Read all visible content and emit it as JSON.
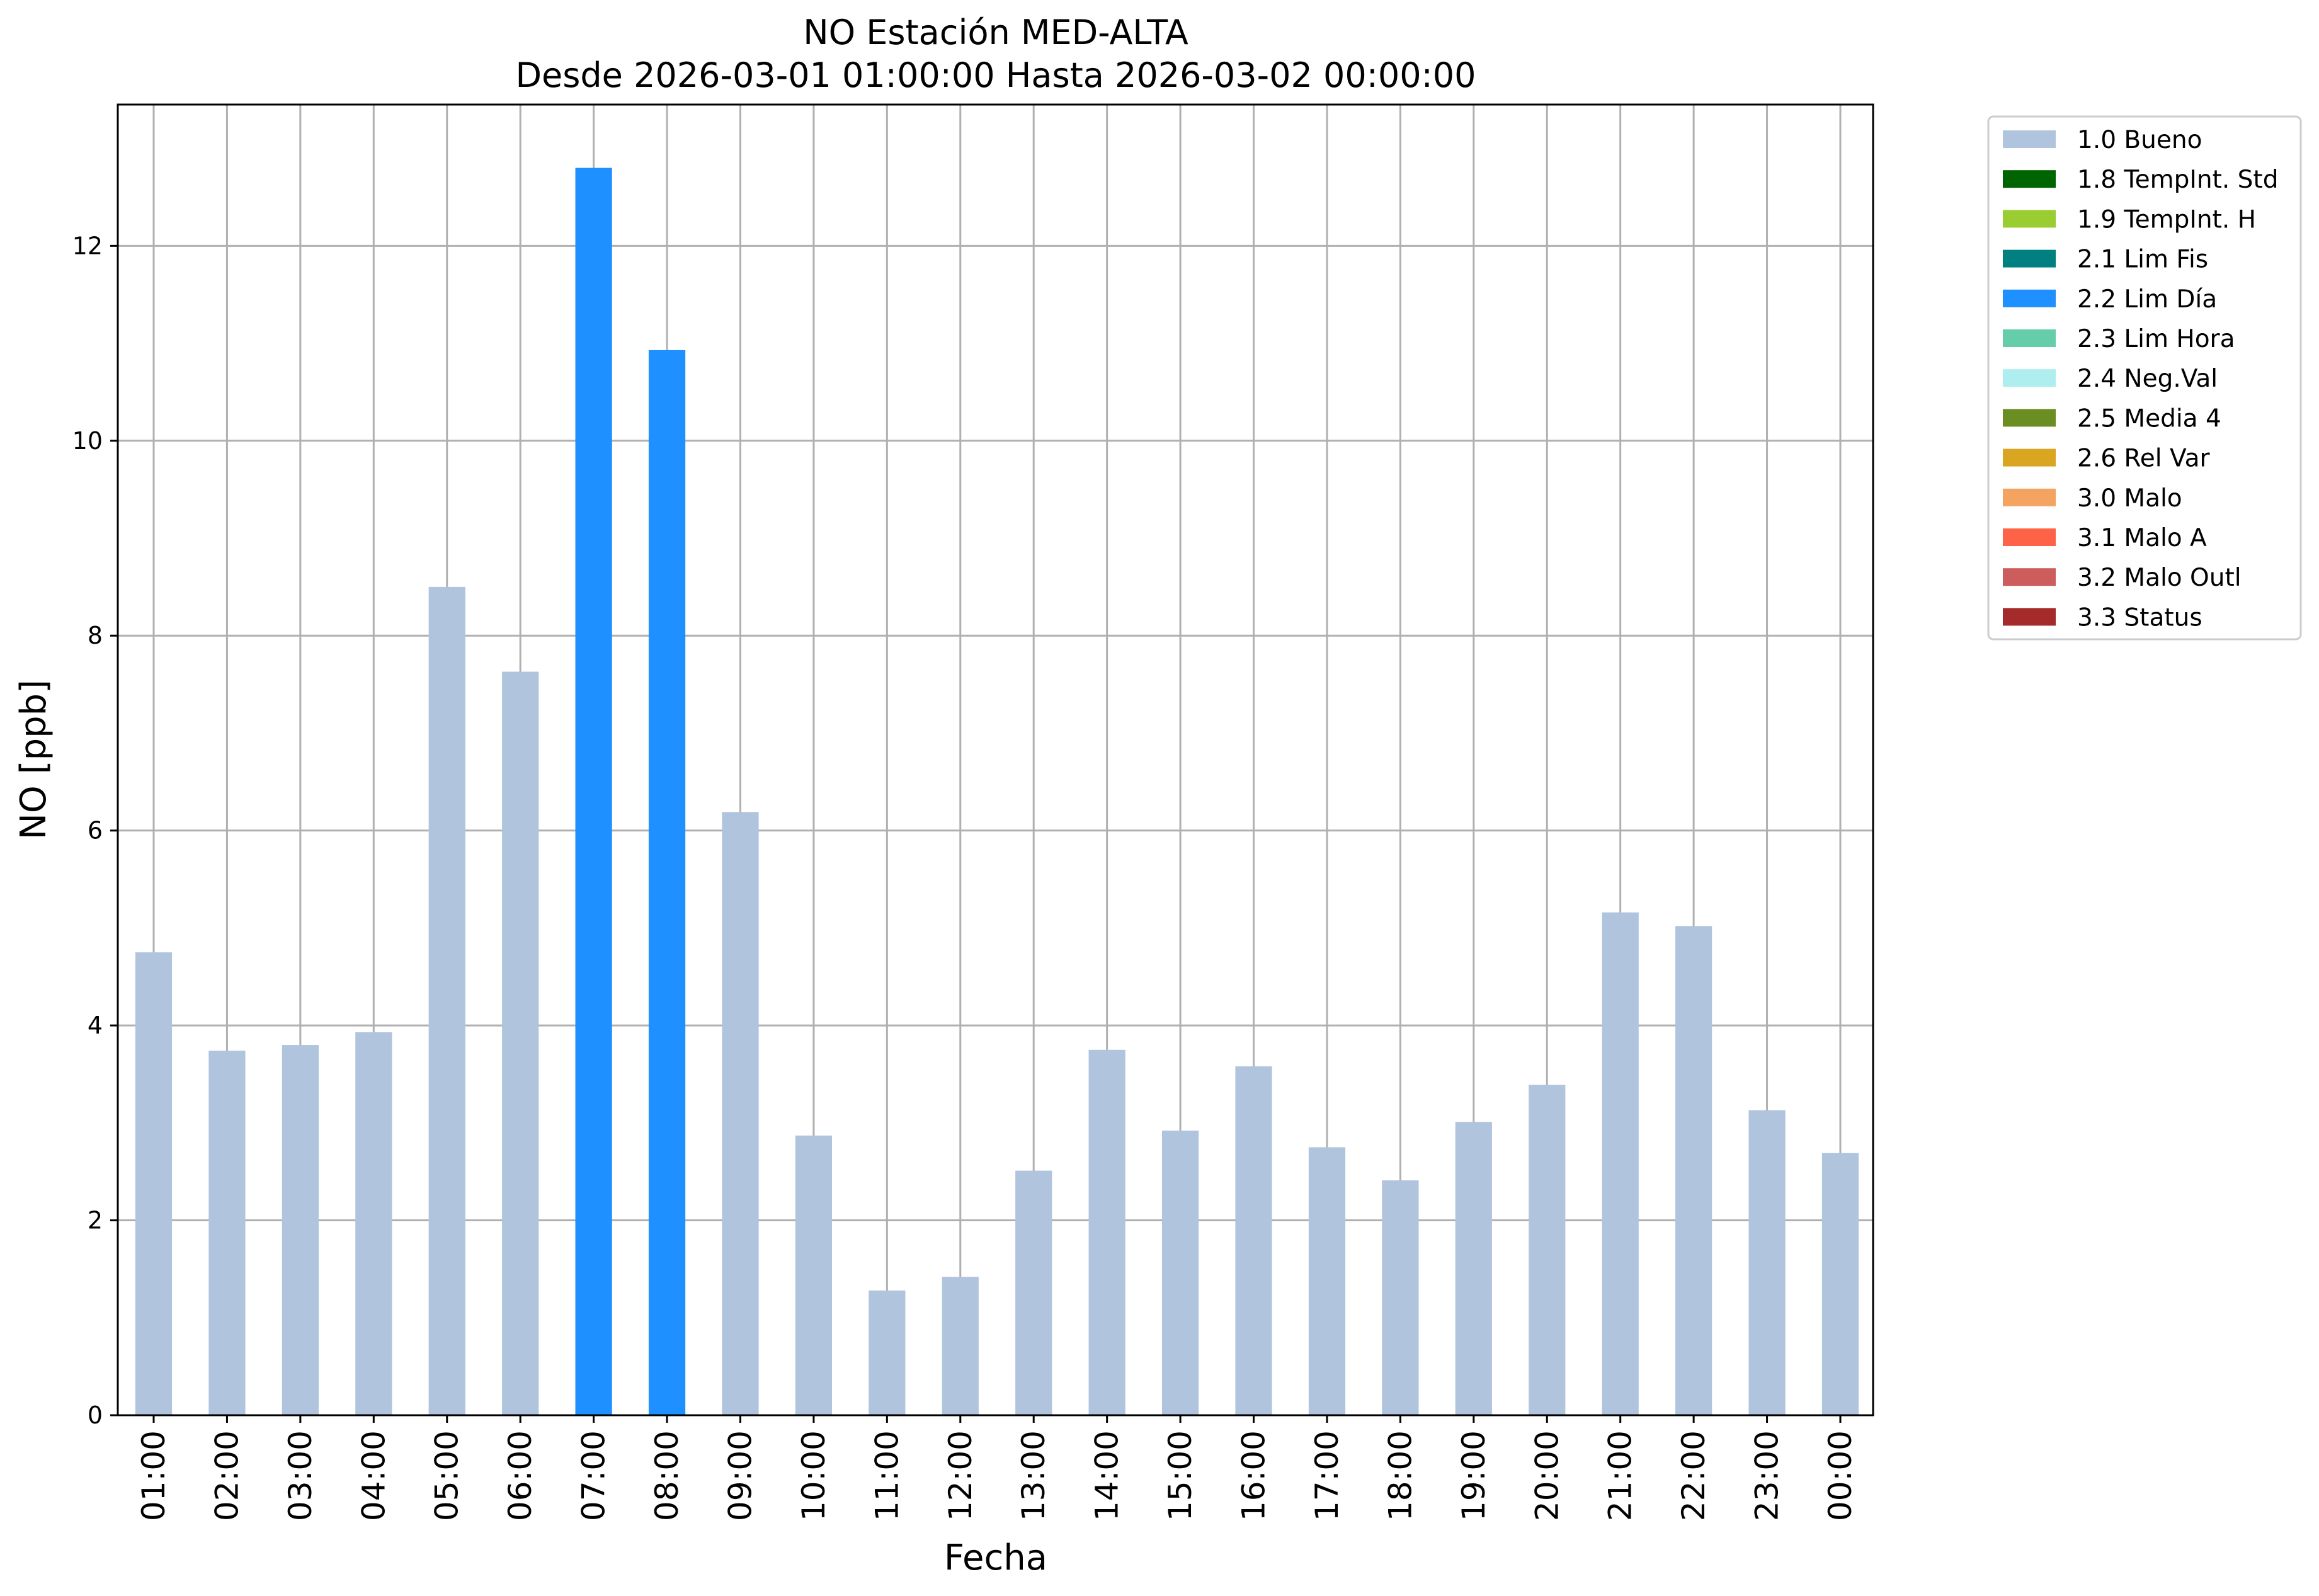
{
  "chart_data": {
    "type": "bar",
    "title": "NO Estación MED-ALTA",
    "subtitle": "Desde 2026-03-01 01:00:00 Hasta 2026-03-02 00:00:00",
    "xlabel": "Fecha",
    "ylabel": "NO [ppb]",
    "ylim": [
      0,
      13.45
    ],
    "yticks": [
      0,
      2,
      4,
      6,
      8,
      10,
      12
    ],
    "grid": true,
    "legend_position": "outside-top-right",
    "categories": [
      "01:00",
      "02:00",
      "03:00",
      "04:00",
      "05:00",
      "06:00",
      "07:00",
      "08:00",
      "09:00",
      "10:00",
      "11:00",
      "12:00",
      "13:00",
      "14:00",
      "15:00",
      "16:00",
      "17:00",
      "18:00",
      "19:00",
      "20:00",
      "21:00",
      "22:00",
      "23:00",
      "00:00"
    ],
    "values": [
      4.75,
      3.74,
      3.8,
      3.93,
      8.5,
      7.63,
      12.8,
      10.93,
      6.19,
      2.87,
      1.28,
      1.42,
      2.51,
      3.75,
      2.92,
      3.58,
      2.75,
      2.41,
      3.01,
      3.39,
      5.16,
      5.02,
      3.13,
      2.69
    ],
    "bar_flags": [
      "1.0 Bueno",
      "1.0 Bueno",
      "1.0 Bueno",
      "1.0 Bueno",
      "1.0 Bueno",
      "1.0 Bueno",
      "2.2 Lim Día",
      "2.2 Lim Día",
      "1.0 Bueno",
      "1.0 Bueno",
      "1.0 Bueno",
      "1.0 Bueno",
      "1.0 Bueno",
      "1.0 Bueno",
      "1.0 Bueno",
      "1.0 Bueno",
      "1.0 Bueno",
      "1.0 Bueno",
      "1.0 Bueno",
      "1.0 Bueno",
      "1.0 Bueno",
      "1.0 Bueno",
      "1.0 Bueno",
      "1.0 Bueno"
    ],
    "legend": [
      {
        "label": "1.0 Bueno",
        "color": "#b0c4de"
      },
      {
        "label": "1.8 TempInt. Std",
        "color": "#006400"
      },
      {
        "label": "1.9 TempInt. H",
        "color": "#9acd32"
      },
      {
        "label": "2.1 Lim Fis",
        "color": "#008080"
      },
      {
        "label": "2.2 Lim Día",
        "color": "#1e90ff"
      },
      {
        "label": "2.3 Lim Hora",
        "color": "#66cdaa"
      },
      {
        "label": "2.4 Neg.Val",
        "color": "#afeeee"
      },
      {
        "label": "2.5 Media 4",
        "color": "#6b8e23"
      },
      {
        "label": "2.6 Rel Var",
        "color": "#daa520"
      },
      {
        "label": "3.0 Malo",
        "color": "#f4a460"
      },
      {
        "label": "3.1 Malo A",
        "color": "#ff6347"
      },
      {
        "label": "3.2 Malo Outl",
        "color": "#cd5c5c"
      },
      {
        "label": "3.3 Status",
        "color": "#a52a2a"
      }
    ]
  }
}
